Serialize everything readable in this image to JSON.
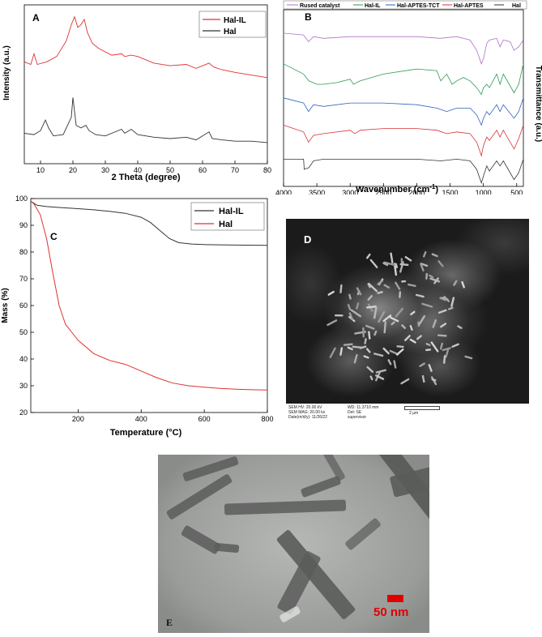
{
  "panels": {
    "A": {
      "label": "A",
      "chart_data": {
        "type": "line",
        "title": "",
        "xlabel": "2 Theta (degree)",
        "ylabel": "Intensity (a.u.)",
        "xlim": [
          5,
          80
        ],
        "xticks": [
          "10",
          "20",
          "30",
          "40",
          "50",
          "60",
          "70",
          "80"
        ],
        "legend": "top-right",
        "series": [
          {
            "name": "Hal-IL",
            "color": "#e03030",
            "x": [
              5,
              7,
              8,
              9,
              12,
              15,
              18,
              19.5,
              20.5,
              21.5,
              22.5,
              23.5,
              24.5,
              26,
              28,
              32,
              35,
              36,
              38,
              40,
              45,
              50,
              55,
              58,
              62,
              63.5,
              66,
              70,
              75,
              80
            ],
            "y": [
              72,
              70,
              78,
              70,
              72,
              76,
              88,
              100,
              106,
              98,
              100,
              104,
              94,
              86,
              82,
              77,
              78,
              76,
              77,
              76,
              71,
              69,
              70,
              67,
              71,
              68,
              66,
              64,
              62,
              60
            ]
          },
          {
            "name": "Hal",
            "color": "#333333",
            "x": [
              5,
              8,
              10,
              11.5,
              12.5,
              14,
              17,
              19.5,
              20,
              21,
              22.5,
              24,
              25,
              27,
              30,
              35,
              36,
              38,
              40,
              45,
              50,
              55,
              58,
              62,
              63,
              66,
              70,
              75,
              80
            ],
            "y": [
              18,
              17,
              20,
              28,
              22,
              16,
              17,
              30,
              45,
              24,
              22,
              24,
              20,
              17,
              16,
              21,
              18,
              21,
              17,
              15,
              14,
              15,
              13,
              19,
              14,
              13,
              12,
              12,
              11
            ]
          }
        ]
      }
    },
    "B": {
      "label": "B",
      "chart_data": {
        "type": "line",
        "title": "",
        "xlabel": "Wavenumber (cm",
        "xlabel_sup": "-1",
        "xlabel_end": ")",
        "ylabel": "Transmittance (a.u.)",
        "xlim": [
          4000,
          400
        ],
        "xticks": [
          "4000",
          "3500",
          "3000",
          "2500",
          "2000",
          "1500",
          "1000",
          "500"
        ],
        "legend": "top",
        "series": [
          {
            "name": "Rused catalyst",
            "color": "#b070c8",
            "x": [
              4000,
              3700,
              3625,
              3550,
              3400,
              3000,
              2500,
              2000,
              1650,
              1400,
              1200,
              1100,
              1030,
              1000,
              950,
              910,
              800,
              750,
              700,
              600,
              540,
              470,
              400
            ],
            "y": [
              90,
              89,
              85,
              88,
              87,
              88,
              88,
              88,
              87,
              88,
              86,
              80,
              72,
              75,
              84,
              86,
              87,
              82,
              86,
              85,
              80,
              82,
              86
            ]
          },
          {
            "name": "Hal-IL",
            "color": "#2e9a50",
            "x": [
              4000,
              3700,
              3620,
              3500,
              3400,
              3200,
              3000,
              2950,
              2850,
              2500,
              2000,
              1700,
              1640,
              1550,
              1470,
              1400,
              1300,
              1200,
              1100,
              1030,
              1000,
              950,
              910,
              800,
              750,
              700,
              540,
              470,
              400
            ],
            "y": [
              72,
              66,
              62,
              60,
              60,
              61,
              63,
              60,
              62,
              66,
              69,
              68,
              62,
              66,
              60,
              62,
              64,
              62,
              58,
              54,
              58,
              60,
              58,
              66,
              60,
              66,
              55,
              60,
              72
            ]
          },
          {
            "name": "Hal-APTES-TCT",
            "color": "#2f60c0",
            "x": [
              4000,
              3700,
              3625,
              3550,
              3400,
              3000,
              2500,
              2000,
              1700,
              1550,
              1400,
              1200,
              1100,
              1030,
              1000,
              950,
              910,
              800,
              750,
              700,
              540,
              470,
              400
            ],
            "y": [
              52,
              49,
              44,
              48,
              47,
              49,
              49,
              48,
              46,
              44,
              46,
              46,
              42,
              36,
              40,
              44,
              42,
              48,
              44,
              48,
              40,
              44,
              52
            ]
          },
          {
            "name": "Hal-APTES",
            "color": "#d83232",
            "x": [
              4000,
              3700,
              3625,
              3550,
              3400,
              3000,
              2930,
              2850,
              2500,
              2000,
              1700,
              1550,
              1400,
              1200,
              1100,
              1030,
              1000,
              950,
              910,
              800,
              750,
              700,
              540,
              470,
              400
            ],
            "y": [
              36,
              32,
              26,
              30,
              31,
              33,
              31,
              33,
              34,
              34,
              33,
              31,
              32,
              31,
              26,
              18,
              24,
              29,
              27,
              33,
              29,
              33,
              22,
              28,
              36
            ]
          },
          {
            "name": "Hal",
            "color": "#333333",
            "x": [
              4000,
              3700,
              3690,
              3620,
              3550,
              3400,
              3000,
              2500,
              2000,
              1640,
              1400,
              1200,
              1100,
              1030,
              1000,
              950,
              910,
              800,
              750,
              700,
              540,
              470,
              400
            ],
            "y": [
              16,
              16,
              10,
              11,
              15,
              16,
              16,
              16,
              16,
              15,
              16,
              15,
              10,
              2,
              6,
              12,
              9,
              15,
              12,
              15,
              4,
              8,
              16
            ]
          }
        ]
      }
    },
    "C": {
      "label": "C",
      "chart_data": {
        "type": "line",
        "title": "",
        "xlabel": "Temperature (°C)",
        "ylabel": "Mass (%)",
        "xlim": [
          50,
          800
        ],
        "ylim": [
          20,
          100
        ],
        "xticks": [
          "200",
          "400",
          "600",
          "800"
        ],
        "yticks": [
          "20",
          "30",
          "40",
          "50",
          "60",
          "70",
          "80",
          "90",
          "100"
        ],
        "legend": "top-right",
        "series": [
          {
            "name": "Hal-IL",
            "color": "#333333",
            "x": [
              50,
              70,
              100,
              150,
              200,
              250,
              300,
              350,
              400,
              430,
              460,
              490,
              520,
              560,
              600,
              700,
              800
            ],
            "y": [
              99,
              97.5,
              97,
              96.6,
              96.2,
              95.8,
              95.2,
              94.5,
              93,
              91,
              88,
              85,
              83.5,
              83,
              82.8,
              82.6,
              82.5
            ]
          },
          {
            "name": "Hal",
            "color": "#e03030",
            "x": [
              50,
              60,
              80,
              100,
              120,
              140,
              160,
              180,
              200,
              250,
              300,
              350,
              400,
              450,
              500,
              550,
              600,
              650,
              700,
              750,
              800
            ],
            "y": [
              99,
              98,
              94,
              85,
              72,
              60,
              53,
              50,
              47,
              42,
              39.5,
              38,
              35.5,
              33,
              31,
              30,
              29.5,
              29,
              28.7,
              28.5,
              28.4
            ]
          }
        ]
      }
    },
    "D": {
      "label": "D",
      "info": {
        "hv": "SEM HV: 20.00 kV",
        "mag": "SEM MAG: 20.00 kx",
        "date": "Date(m/d/y): 11/26/22",
        "wd": "WD: 11.3710 mm",
        "det": "Det: SE",
        "user": "supervisor",
        "scale": "2 μm"
      }
    },
    "E": {
      "label": "E",
      "scale": "50 nm"
    }
  }
}
